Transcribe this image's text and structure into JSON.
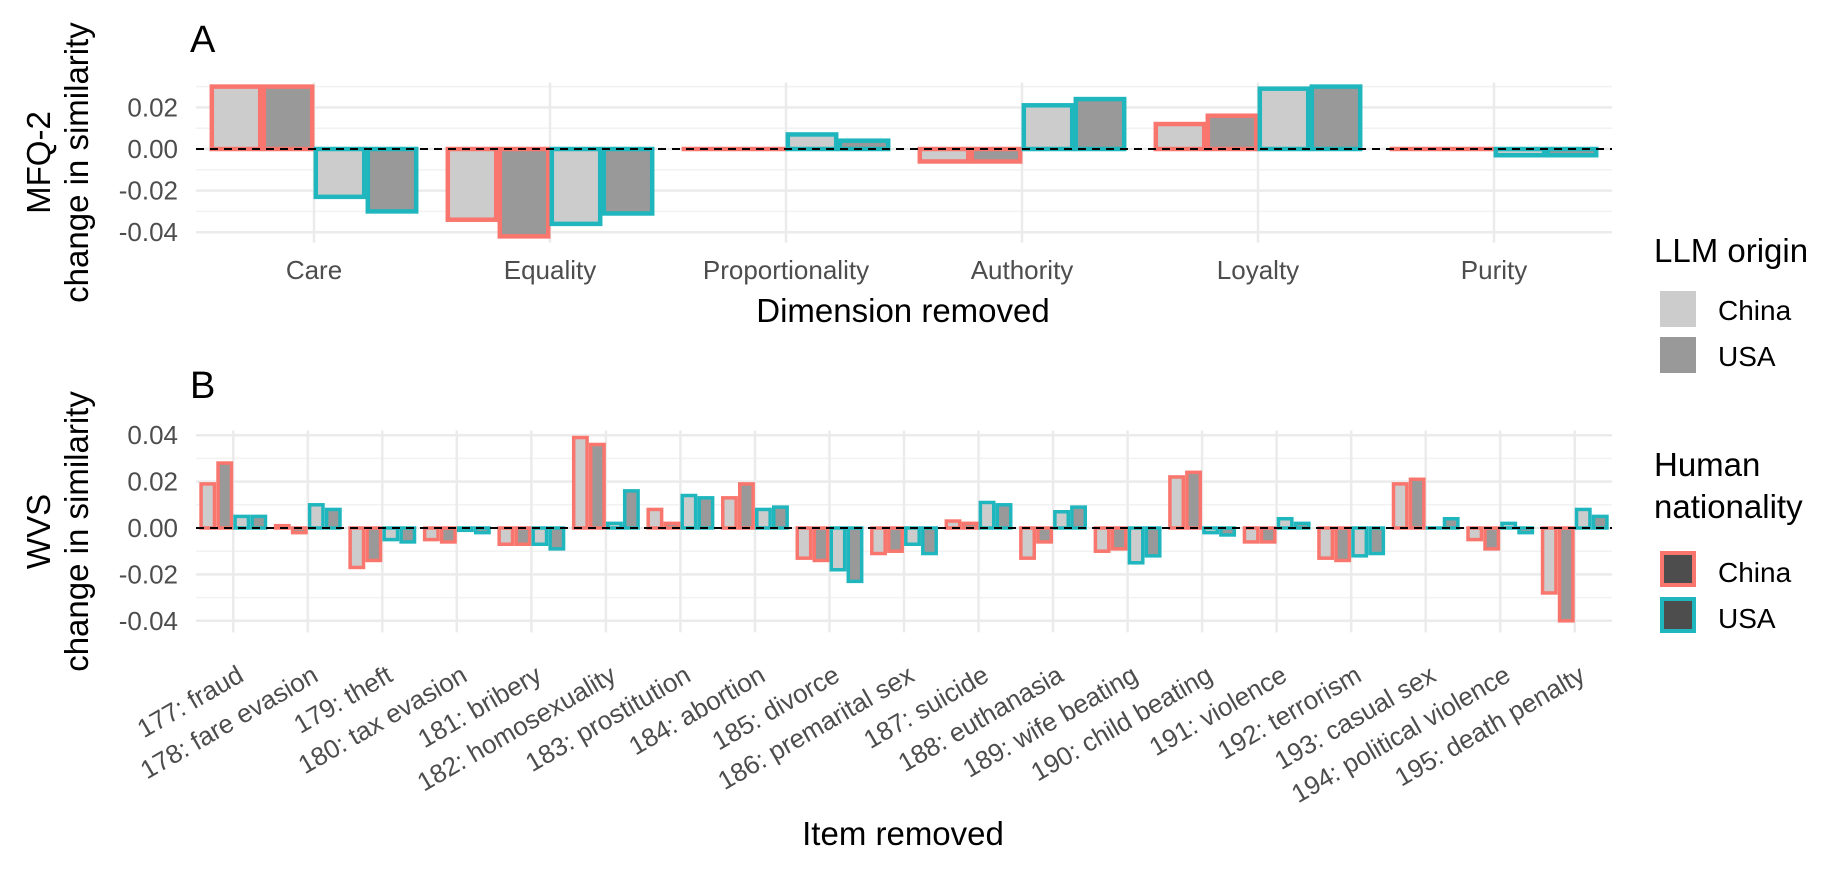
{
  "chart_data": [
    {
      "type": "bar",
      "panel_label": "A",
      "ylabel": "MFQ-2\nchange in similarity",
      "xlabel": "Dimension removed",
      "ylim": [
        -0.045,
        0.032
      ],
      "yticks": [
        0.02,
        0.0,
        -0.02,
        -0.04
      ],
      "ytick_labels": [
        "0.02",
        "0.00",
        "-0.02",
        "-0.04"
      ],
      "grid": true,
      "categories": [
        "Care",
        "Equality",
        "Proportionality",
        "Authority",
        "Loyalty",
        "Purity"
      ],
      "series": [
        {
          "human": "China",
          "llm": "China",
          "values": [
            0.03,
            -0.034,
            0.0,
            -0.006,
            0.012,
            0.0
          ]
        },
        {
          "human": "China",
          "llm": "USA",
          "values": [
            0.03,
            -0.042,
            0.0,
            -0.006,
            0.016,
            0.0
          ]
        },
        {
          "human": "USA",
          "llm": "China",
          "values": [
            -0.023,
            -0.036,
            0.007,
            0.021,
            0.029,
            -0.003
          ]
        },
        {
          "human": "USA",
          "llm": "USA",
          "values": [
            -0.03,
            -0.031,
            0.004,
            0.024,
            0.03,
            -0.003
          ]
        }
      ]
    },
    {
      "type": "bar",
      "panel_label": "B",
      "ylabel": "WVS\nchange in similarity",
      "xlabel": "Item removed",
      "ylim": [
        -0.045,
        0.042
      ],
      "yticks": [
        0.04,
        0.02,
        0.0,
        -0.02,
        -0.04
      ],
      "ytick_labels": [
        "0.04",
        "0.02",
        "0.00",
        "-0.02",
        "-0.04"
      ],
      "grid": true,
      "categories": [
        "177: fraud",
        "178: fare evasion",
        "179: theft",
        "180: tax evasion",
        "181: bribery",
        "182: homosexuality",
        "183: prostitution",
        "184: abortion",
        "185: divorce",
        "186: premarital sex",
        "187: suicide",
        "188: euthanasia",
        "189: wife beating",
        "190: child beating",
        "191: violence",
        "192: terrorism",
        "193: casual sex",
        "194: political violence",
        "195: death penalty"
      ],
      "series": [
        {
          "human": "China",
          "llm": "China",
          "values": [
            0.019,
            0.001,
            -0.017,
            -0.005,
            -0.007,
            0.039,
            0.008,
            0.013,
            -0.013,
            -0.011,
            0.003,
            -0.013,
            -0.01,
            0.022,
            -0.006,
            -0.013,
            0.019,
            -0.005,
            -0.028
          ]
        },
        {
          "human": "China",
          "llm": "USA",
          "values": [
            0.028,
            -0.002,
            -0.014,
            -0.006,
            -0.007,
            0.036,
            0.002,
            0.019,
            -0.014,
            -0.01,
            0.002,
            -0.006,
            -0.009,
            0.024,
            -0.006,
            -0.014,
            0.021,
            -0.009,
            -0.04
          ]
        },
        {
          "human": "USA",
          "llm": "China",
          "values": [
            0.005,
            0.01,
            -0.005,
            -0.001,
            -0.007,
            0.002,
            0.014,
            0.008,
            -0.018,
            -0.007,
            0.011,
            0.007,
            -0.015,
            -0.002,
            0.004,
            -0.012,
            0.0,
            0.002,
            0.008
          ]
        },
        {
          "human": "USA",
          "llm": "USA",
          "values": [
            0.005,
            0.008,
            -0.006,
            -0.002,
            -0.009,
            0.016,
            0.013,
            0.009,
            -0.023,
            -0.011,
            0.01,
            0.009,
            -0.012,
            -0.003,
            0.002,
            -0.011,
            0.004,
            -0.002,
            0.005
          ]
        }
      ]
    }
  ],
  "colors": {
    "human_china": "#F8766D",
    "human_usa": "#1FB6BE",
    "llm_china_fill": "#CCCCCC",
    "llm_usa_fill": "#999999",
    "legend_human_fill": "#4D4D4D"
  },
  "legend_llm": {
    "title": "LLM origin",
    "items": [
      "China",
      "USA"
    ]
  },
  "legend_human": {
    "title": "Human\nnationality",
    "items": [
      "China",
      "USA"
    ]
  }
}
